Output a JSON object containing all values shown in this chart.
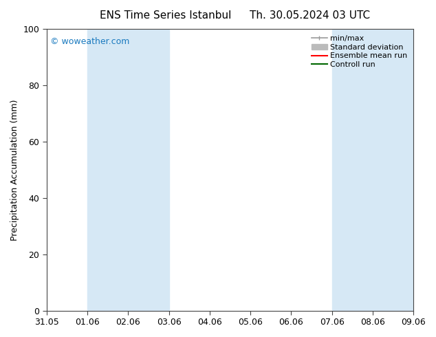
{
  "title_left": "ENS Time Series Istanbul",
  "title_right": "Th. 30.05.2024 03 UTC",
  "ylabel": "Precipitation Accumulation (mm)",
  "ylim": [
    0,
    100
  ],
  "yticks": [
    0,
    20,
    40,
    60,
    80,
    100
  ],
  "xtick_labels": [
    "31.05",
    "01.06",
    "02.06",
    "03.06",
    "04.06",
    "05.06",
    "06.06",
    "07.06",
    "08.06",
    "09.06"
  ],
  "watermark": "© woweather.com",
  "watermark_color": "#1a7abf",
  "shaded_bands": [
    {
      "xmin": 1,
      "xmax": 3,
      "color": "#d6e8f5"
    },
    {
      "xmin": 7,
      "xmax": 9,
      "color": "#d6e8f5"
    }
  ],
  "background_color": "#ffffff",
  "plot_bg_color": "#ffffff",
  "legend_entries": [
    {
      "label": "min/max",
      "color": "#999999",
      "lw": 1.2,
      "style": "solid",
      "marker": true
    },
    {
      "label": "Standard deviation",
      "color": "#bbbbbb",
      "lw": 5,
      "style": "solid",
      "marker": false
    },
    {
      "label": "Ensemble mean run",
      "color": "#ff0000",
      "lw": 1.5,
      "style": "solid",
      "marker": false
    },
    {
      "label": "Controll run",
      "color": "#006600",
      "lw": 1.5,
      "style": "solid",
      "marker": false
    }
  ],
  "grid_color": "#dddddd",
  "spine_color": "#444444",
  "title_fontsize": 11,
  "tick_fontsize": 9,
  "ylabel_fontsize": 9
}
